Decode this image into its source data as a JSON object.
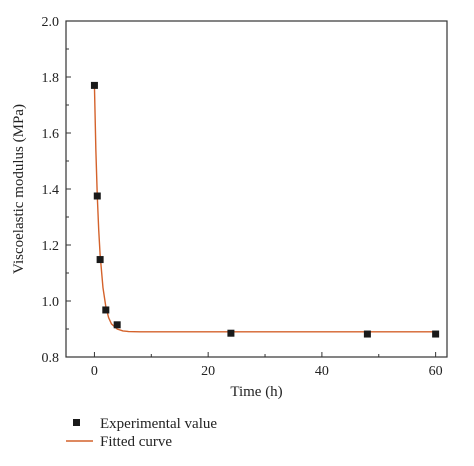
{
  "chart_data": {
    "type": "scatter",
    "xlabel": "Time (h)",
    "ylabel": "Viscoelastic modulus (MPa)",
    "xlim": [
      -5,
      62
    ],
    "ylim": [
      0.8,
      2.0
    ],
    "x_ticks": [
      0,
      20,
      40,
      60
    ],
    "x_tick_labels": [
      "0",
      "20",
      "40",
      "60"
    ],
    "y_ticks": [
      0.8,
      1.0,
      1.2,
      1.4,
      1.6,
      1.8,
      2.0
    ],
    "y_tick_labels": [
      "0.8",
      "1.0",
      "1.2",
      "1.4",
      "1.6",
      "1.8",
      "2.0"
    ],
    "grid": false,
    "legend_position": "bottom-left, below plot",
    "series": [
      {
        "name": "Experimental value",
        "kind": "scatter",
        "marker": "square",
        "color": "#1a1a1a",
        "x": [
          0,
          0.5,
          1,
          2,
          4,
          24,
          48,
          60
        ],
        "y": [
          1.77,
          1.375,
          1.148,
          0.968,
          0.915,
          0.885,
          0.882,
          0.882
        ]
      },
      {
        "name": "Fitted curve",
        "kind": "line",
        "color": "#d4622b",
        "x": [
          0,
          0.25,
          0.5,
          0.75,
          1,
          1.5,
          2,
          2.5,
          3,
          4,
          5,
          6,
          8,
          10,
          15,
          20,
          30,
          40,
          50,
          60
        ],
        "y": [
          1.77,
          1.54,
          1.375,
          1.255,
          1.165,
          1.048,
          0.98,
          0.94,
          0.918,
          0.9,
          0.893,
          0.891,
          0.89,
          0.89,
          0.89,
          0.89,
          0.89,
          0.89,
          0.89,
          0.89
        ]
      }
    ]
  }
}
